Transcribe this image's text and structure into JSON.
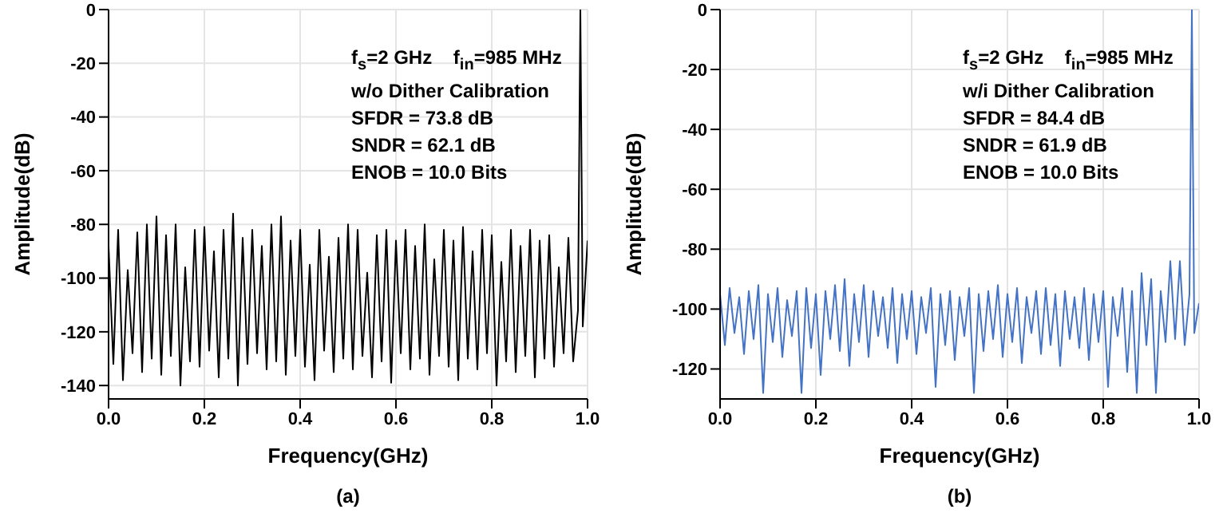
{
  "chart_data": [
    {
      "type": "line",
      "title": "(a)",
      "xlabel": "Frequency(GHz)",
      "ylabel": "Amplitude(dB)",
      "annotations": [
        "f$_{s}$=2 GHz    f$_{in}$=985 MHz",
        "w/o Dither Calibration",
        "SFDR = 73.8 dB",
        "SNDR = 62.1 dB",
        "ENOB = 10.0 Bits"
      ],
      "x": [
        0,
        0.01,
        0.02,
        0.03,
        0.04,
        0.05,
        0.06,
        0.07,
        0.08,
        0.09,
        0.1,
        0.11,
        0.12,
        0.13,
        0.14,
        0.15,
        0.16,
        0.17,
        0.18,
        0.19,
        0.2,
        0.21,
        0.22,
        0.23,
        0.24,
        0.25,
        0.26,
        0.27,
        0.28,
        0.29,
        0.3,
        0.31,
        0.32,
        0.33,
        0.34,
        0.35,
        0.36,
        0.37,
        0.38,
        0.39,
        0.4,
        0.41,
        0.42,
        0.43,
        0.44,
        0.45,
        0.46,
        0.47,
        0.48,
        0.49,
        0.5,
        0.51,
        0.52,
        0.53,
        0.54,
        0.55,
        0.56,
        0.57,
        0.58,
        0.59,
        0.6,
        0.61,
        0.62,
        0.63,
        0.64,
        0.65,
        0.66,
        0.67,
        0.68,
        0.69,
        0.7,
        0.71,
        0.72,
        0.73,
        0.74,
        0.75,
        0.76,
        0.77,
        0.78,
        0.79,
        0.8,
        0.81,
        0.82,
        0.83,
        0.84,
        0.85,
        0.86,
        0.87,
        0.88,
        0.89,
        0.9,
        0.91,
        0.92,
        0.93,
        0.94,
        0.95,
        0.96,
        0.97,
        0.98,
        0.985,
        0.99,
        1.0
      ],
      "series": [
        {
          "color": "#000000",
          "values": [
            -88,
            -132,
            -82,
            -138,
            -97,
            -128,
            -83,
            -135,
            -80,
            -130,
            -77,
            -136,
            -84,
            -129,
            -80,
            -140,
            -96,
            -131,
            -82,
            -133,
            -81,
            -127,
            -90,
            -137,
            -82,
            -130,
            -76,
            -140,
            -85,
            -132,
            -82,
            -128,
            -88,
            -134,
            -80,
            -131,
            -77,
            -136,
            -86,
            -129,
            -82,
            -133,
            -95,
            -138,
            -82,
            -127,
            -92,
            -135,
            -85,
            -130,
            -80,
            -134,
            -82,
            -129,
            -98,
            -137,
            -84,
            -131,
            -82,
            -139,
            -86,
            -128,
            -82,
            -134,
            -88,
            -130,
            -80,
            -136,
            -93,
            -129,
            -82,
            -133,
            -86,
            -138,
            -81,
            -130,
            -90,
            -134,
            -82,
            -128,
            -84,
            -140,
            -94,
            -131,
            -82,
            -135,
            -88,
            -129,
            -82,
            -137,
            -86,
            -130,
            -84,
            -133,
            -96,
            -128,
            -85,
            -131,
            -112,
            0,
            -118,
            -86
          ]
        }
      ],
      "xlim": [
        0,
        1
      ],
      "xticks": [
        {
          "value": 0,
          "label": "0.0"
        },
        {
          "value": 0.2,
          "label": "0.2"
        },
        {
          "value": 0.4,
          "label": "0.4"
        },
        {
          "value": 0.6,
          "label": "0.6"
        },
        {
          "value": 0.8,
          "label": "0.8"
        },
        {
          "value": 1,
          "label": "1.0"
        }
      ],
      "ylim": [
        -145,
        0
      ],
      "yticks": [
        -140,
        -120,
        -100,
        -80,
        -60,
        -40,
        -20,
        0
      ],
      "grid": true,
      "marker": "none",
      "line_style": "solid"
    },
    {
      "type": "line",
      "title": "(b)",
      "xlabel": "Frequency(GHz)",
      "ylabel": "Amplitude(dB)",
      "annotations": [
        "f$_{s}$=2 GHz    f$_{in}$=985 MHz",
        "w/i Dither Calibration",
        "SFDR = 84.4 dB",
        "SNDR = 61.9 dB",
        "ENOB = 10.0 Bits"
      ],
      "x": [
        0,
        0.01,
        0.02,
        0.03,
        0.04,
        0.05,
        0.06,
        0.07,
        0.08,
        0.09,
        0.1,
        0.11,
        0.12,
        0.13,
        0.14,
        0.15,
        0.16,
        0.17,
        0.18,
        0.19,
        0.2,
        0.21,
        0.22,
        0.23,
        0.24,
        0.25,
        0.26,
        0.27,
        0.28,
        0.29,
        0.3,
        0.31,
        0.32,
        0.33,
        0.34,
        0.35,
        0.36,
        0.37,
        0.38,
        0.39,
        0.4,
        0.41,
        0.42,
        0.43,
        0.44,
        0.45,
        0.46,
        0.47,
        0.48,
        0.49,
        0.5,
        0.51,
        0.52,
        0.53,
        0.54,
        0.55,
        0.56,
        0.57,
        0.58,
        0.59,
        0.6,
        0.61,
        0.62,
        0.63,
        0.64,
        0.65,
        0.66,
        0.67,
        0.68,
        0.69,
        0.7,
        0.71,
        0.72,
        0.73,
        0.74,
        0.75,
        0.76,
        0.77,
        0.78,
        0.79,
        0.8,
        0.81,
        0.82,
        0.83,
        0.84,
        0.85,
        0.86,
        0.87,
        0.88,
        0.89,
        0.9,
        0.91,
        0.92,
        0.93,
        0.94,
        0.95,
        0.96,
        0.97,
        0.98,
        0.985,
        0.99,
        1.0
      ],
      "series": [
        {
          "color": "#4472c4",
          "values": [
            -95,
            -112,
            -93,
            -108,
            -96,
            -115,
            -94,
            -110,
            -92,
            -128,
            -95,
            -111,
            -93,
            -116,
            -97,
            -109,
            -94,
            -128,
            -93,
            -113,
            -95,
            -122,
            -94,
            -110,
            -92,
            -114,
            -90,
            -119,
            -95,
            -111,
            -92,
            -116,
            -94,
            -109,
            -96,
            -113,
            -93,
            -118,
            -95,
            -110,
            -94,
            -115,
            -96,
            -108,
            -93,
            -126,
            -95,
            -112,
            -94,
            -117,
            -96,
            -109,
            -93,
            -128,
            -95,
            -114,
            -94,
            -110,
            -92,
            -116,
            -95,
            -111,
            -93,
            -118,
            -96,
            -108,
            -94,
            -115,
            -93,
            -112,
            -95,
            -119,
            -94,
            -110,
            -96,
            -113,
            -93,
            -117,
            -95,
            -111,
            -94,
            -126,
            -96,
            -109,
            -93,
            -121,
            -94,
            -128,
            -88,
            -112,
            -90,
            -128,
            -94,
            -111,
            -84,
            -110,
            -84,
            -112,
            -95,
            0,
            -108,
            -98
          ]
        }
      ],
      "xlim": [
        0,
        1
      ],
      "xticks": [
        {
          "value": 0,
          "label": "0.0"
        },
        {
          "value": 0.2,
          "label": "0.2"
        },
        {
          "value": 0.4,
          "label": "0.4"
        },
        {
          "value": 0.6,
          "label": "0.6"
        },
        {
          "value": 0.8,
          "label": "0.8"
        },
        {
          "value": 1,
          "label": "1.0"
        }
      ],
      "ylim": [
        -130,
        0
      ],
      "yticks": [
        -120,
        -100,
        -80,
        -60,
        -40,
        -20,
        0
      ],
      "grid": true,
      "marker": "none",
      "line_style": "solid"
    }
  ]
}
